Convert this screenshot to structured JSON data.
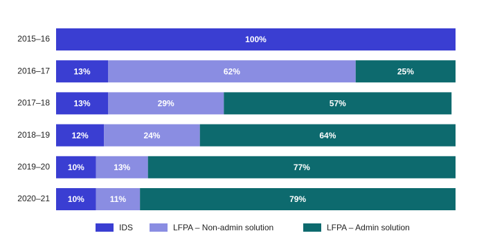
{
  "chart_data": {
    "type": "stacked-bar-horizontal",
    "categories": [
      "2015–16",
      "2016–17",
      "2017–18",
      "2018–19",
      "2019–20",
      "2020–21"
    ],
    "xlim": [
      0,
      100
    ],
    "series": [
      {
        "name": "IDS",
        "color": "#3a3ed2",
        "values": [
          100,
          13,
          13,
          12,
          10,
          10
        ],
        "value_labels": [
          "100%",
          "13%",
          "13%",
          "12%",
          "10%",
          "10%"
        ]
      },
      {
        "name": "LFPA – Non-admin solution",
        "color": "#8a8de2",
        "values": [
          null,
          62,
          29,
          24,
          13,
          11
        ],
        "value_labels": [
          null,
          "62%",
          "29%",
          "24%",
          "13%",
          "11%"
        ]
      },
      {
        "name": "LFPA – Admin solution",
        "color": "#0d6a6e",
        "values": [
          null,
          25,
          57,
          64,
          77,
          79
        ],
        "value_labels": [
          null,
          "25%",
          "57%",
          "64%",
          "77%",
          "79%"
        ]
      }
    ]
  }
}
